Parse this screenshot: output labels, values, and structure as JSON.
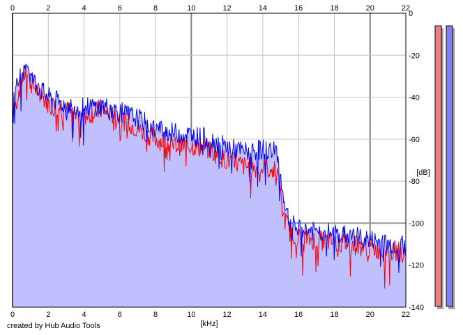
{
  "credit": "created by Hub Audio Tools",
  "chart_data": {
    "type": "area",
    "xlabel": "[kHz]",
    "ylabel": "[dB]",
    "xlim": [
      0,
      22
    ],
    "ylim": [
      -140,
      0
    ],
    "x_ticks": [
      0,
      2,
      4,
      6,
      8,
      10,
      12,
      14,
      16,
      18,
      20,
      22
    ],
    "y_ticks": [
      0,
      -20,
      -40,
      -60,
      -80,
      -100,
      -120,
      -140
    ],
    "grid": true,
    "fill_color": "#c0c0ff",
    "series": [
      {
        "color": "#ff0000",
        "channel": "left",
        "x": [
          0,
          0.5,
          0.8,
          1,
          1.5,
          2,
          3,
          4,
          5,
          6,
          7,
          8,
          9,
          10,
          11,
          12,
          13,
          14,
          14.8,
          15.1,
          15.5,
          16,
          17,
          18,
          19,
          20,
          21,
          22
        ],
        "y": [
          -48,
          -32,
          -27,
          -33,
          -38,
          -43,
          -46,
          -49,
          -46,
          -50,
          -55,
          -60,
          -63,
          -63,
          -65,
          -70,
          -73,
          -74,
          -75,
          -95,
          -104,
          -107,
          -108,
          -109,
          -110,
          -112,
          -113,
          -114
        ]
      },
      {
        "color": "#0000ff",
        "channel": "right",
        "x": [
          0,
          0.5,
          0.8,
          1,
          1.5,
          2,
          3,
          4,
          5,
          6,
          7,
          8,
          9,
          10,
          11,
          12,
          13,
          14,
          14.8,
          15.1,
          15.5,
          16,
          17,
          18,
          19,
          20,
          21,
          22
        ],
        "y": [
          -42,
          -28,
          -22,
          -30,
          -36,
          -40,
          -44,
          -45,
          -44,
          -47,
          -50,
          -55,
          -57,
          -58,
          -60,
          -64,
          -66,
          -65,
          -66,
          -85,
          -100,
          -103,
          -104,
          -105,
          -106,
          -108,
          -110,
          -111
        ]
      }
    ],
    "level_meters": [
      {
        "channel": "left",
        "color": "#f08080",
        "level_db": -6
      },
      {
        "channel": "right",
        "color": "#8080f0",
        "level_db": -6
      }
    ]
  }
}
